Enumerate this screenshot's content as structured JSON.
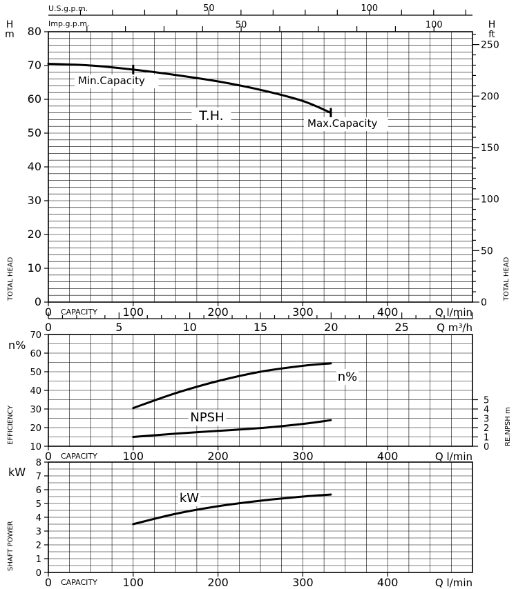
{
  "header": {
    "us_gpm_label": "U.S.g.p.m.",
    "us_gpm_ticks": [
      "50",
      "100"
    ],
    "imp_gpm_label": "Imp.g.p.m.",
    "imp_gpm_ticks": [
      "50",
      "100"
    ]
  },
  "chart_data": [
    {
      "type": "line",
      "panel": "total-head",
      "title": "",
      "ylabel_left_unit": "H\nm",
      "ylabel_right_unit": "H\nft",
      "ylabel_left": "TOTAL HEAD",
      "ylabel_right": "TOTAL HEAD",
      "xlabel_prefix": "CAPACITY",
      "xlabel_unit": "Q  l/min",
      "xlabel2_unit": "Q  m³/h",
      "xlim": [
        0,
        500
      ],
      "ylim": [
        0,
        80
      ],
      "x_ticks": [
        "0",
        "100",
        "200",
        "300",
        "400"
      ],
      "y_ticks": [
        "0",
        "10",
        "20",
        "30",
        "40",
        "50",
        "60",
        "70",
        "80"
      ],
      "y_ticks_right": [
        "0",
        "50",
        "100",
        "150",
        "200",
        "250"
      ],
      "x2_ticks": [
        "0",
        "5",
        "10",
        "15",
        "20",
        "25"
      ],
      "series": [
        {
          "name": "T.H.",
          "x": [
            0,
            50,
            100,
            150,
            200,
            250,
            300,
            333
          ],
          "y": [
            70.5,
            70.0,
            68.8,
            67.2,
            65.3,
            62.8,
            59.5,
            56.0
          ]
        }
      ],
      "annotations": [
        "Min.Capacity",
        "Max.Capacity",
        "T.H."
      ],
      "markers": [
        {
          "x": 100,
          "y": 68.8
        },
        {
          "x": 333,
          "y": 56.0
        }
      ],
      "grid": true
    },
    {
      "type": "line",
      "panel": "efficiency",
      "ylabel_left_unit": "n%",
      "ylabel_left": "EFFICIENCY",
      "ylabel_right": "RE.NPSH m",
      "xlabel_prefix": "CAPACITY",
      "xlabel_unit": "Q  l/min",
      "xlim": [
        0,
        500
      ],
      "ylim": [
        10,
        70
      ],
      "x_ticks": [
        "0",
        "100",
        "200",
        "300",
        "400"
      ],
      "y_ticks": [
        "10",
        "20",
        "30",
        "40",
        "50",
        "60",
        "70"
      ],
      "y_ticks_right": [
        "0",
        "1",
        "2",
        "3",
        "4",
        "5"
      ],
      "series": [
        {
          "name": "n%",
          "x": [
            100,
            150,
            200,
            250,
            300,
            333
          ],
          "y": [
            30.5,
            38.5,
            45.0,
            50.0,
            53.2,
            54.5
          ]
        },
        {
          "name": "NPSH",
          "x": [
            100,
            150,
            200,
            250,
            300,
            333
          ],
          "y": [
            1.0,
            1.35,
            1.65,
            1.95,
            2.4,
            2.8
          ]
        }
      ],
      "grid": true
    },
    {
      "type": "line",
      "panel": "shaft-power",
      "ylabel_left_unit": "kW",
      "ylabel_left": "SHAFT POWER",
      "xlabel_prefix": "CAPACITY",
      "xlabel_unit": "Q  l/min",
      "xlim": [
        0,
        500
      ],
      "ylim": [
        0,
        8
      ],
      "x_ticks": [
        "0",
        "100",
        "200",
        "300",
        "400"
      ],
      "y_ticks": [
        "0",
        "1",
        "2",
        "3",
        "4",
        "5",
        "6",
        "7",
        "8"
      ],
      "series": [
        {
          "name": "kW",
          "x": [
            100,
            150,
            200,
            250,
            300,
            333
          ],
          "y": [
            3.5,
            4.25,
            4.8,
            5.2,
            5.5,
            5.65
          ]
        }
      ],
      "grid": true
    }
  ]
}
